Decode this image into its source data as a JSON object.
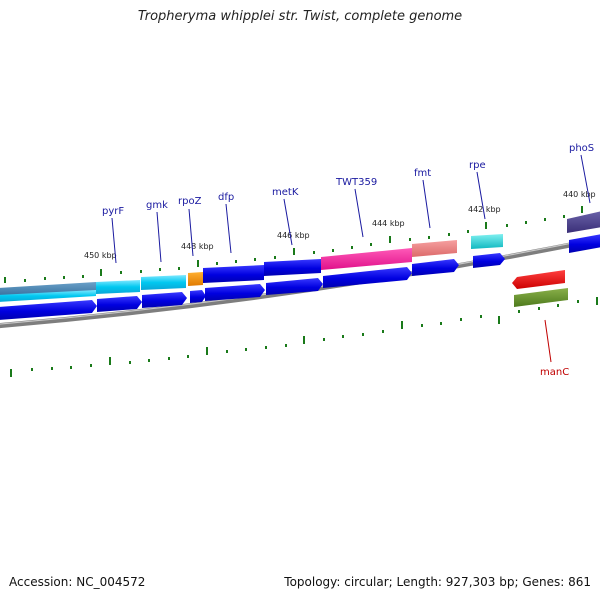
{
  "title": "Tropheryma whipplei str. Twist, complete genome",
  "footer": {
    "accession": "Accession: NC_004572",
    "summary": "Topology: circular; Length: 927,303 bp; Genes: 861"
  },
  "colors": {
    "backbone": "#8a8a8a",
    "tick": "#1a7a1a",
    "label_blue": "#1a1aa0",
    "label_red": "#c00000"
  },
  "kbp_labels": [
    "450 kbp",
    "448 kbp",
    "446 kbp",
    "444 kbp",
    "442 kbp",
    "440 kbp"
  ],
  "genes": [
    {
      "name": "pyrF",
      "color": "#1a1aa0"
    },
    {
      "name": "gmk",
      "color": "#1a1aa0"
    },
    {
      "name": "rpoZ",
      "color": "#1a1aa0"
    },
    {
      "name": "dfp",
      "color": "#1a1aa0"
    },
    {
      "name": "metK",
      "color": "#1a1aa0"
    },
    {
      "name": "TWT359",
      "color": "#1a1aa0"
    },
    {
      "name": "fmt",
      "color": "#1a1aa0"
    },
    {
      "name": "rpe",
      "color": "#1a1aa0"
    },
    {
      "name": "phoS",
      "color": "#1a1aa0"
    },
    {
      "name": "manC",
      "color": "#c00000"
    }
  ]
}
